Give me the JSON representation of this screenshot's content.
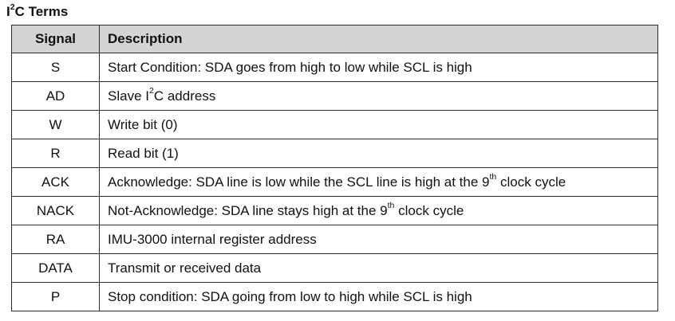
{
  "title": {
    "prefix": "I",
    "superscript": "2",
    "suffix": "C Terms"
  },
  "table": {
    "headers": {
      "signal": "Signal",
      "description": "Description"
    },
    "rows": [
      {
        "signal": "S",
        "desc_before": "Start Condition: SDA goes from high to low while SCL is high",
        "desc_sup": "",
        "desc_after": ""
      },
      {
        "signal": "AD",
        "desc_before": "Slave I",
        "desc_sup": "2",
        "desc_after": "C address"
      },
      {
        "signal": "W",
        "desc_before": "Write bit (0)",
        "desc_sup": "",
        "desc_after": ""
      },
      {
        "signal": "R",
        "desc_before": "Read bit (1)",
        "desc_sup": "",
        "desc_after": ""
      },
      {
        "signal": "ACK",
        "desc_before": "Acknowledge: SDA line is low while the SCL line is high at the 9",
        "desc_sup": "th",
        "desc_after": " clock cycle"
      },
      {
        "signal": "NACK",
        "desc_before": "Not-Acknowledge: SDA line stays high at the 9",
        "desc_sup": "th",
        "desc_after": " clock cycle"
      },
      {
        "signal": "RA",
        "desc_before": "IMU-3000 internal register address",
        "desc_sup": "",
        "desc_after": ""
      },
      {
        "signal": "DATA",
        "desc_before": "Transmit or received data",
        "desc_sup": "",
        "desc_after": ""
      },
      {
        "signal": "P",
        "desc_before": "Stop condition: SDA going from low to high while SCL is high",
        "desc_sup": "",
        "desc_after": ""
      }
    ]
  },
  "colors": {
    "header_background": "#d4d4d4",
    "border": "#2b2b2b",
    "text": "#111111"
  }
}
